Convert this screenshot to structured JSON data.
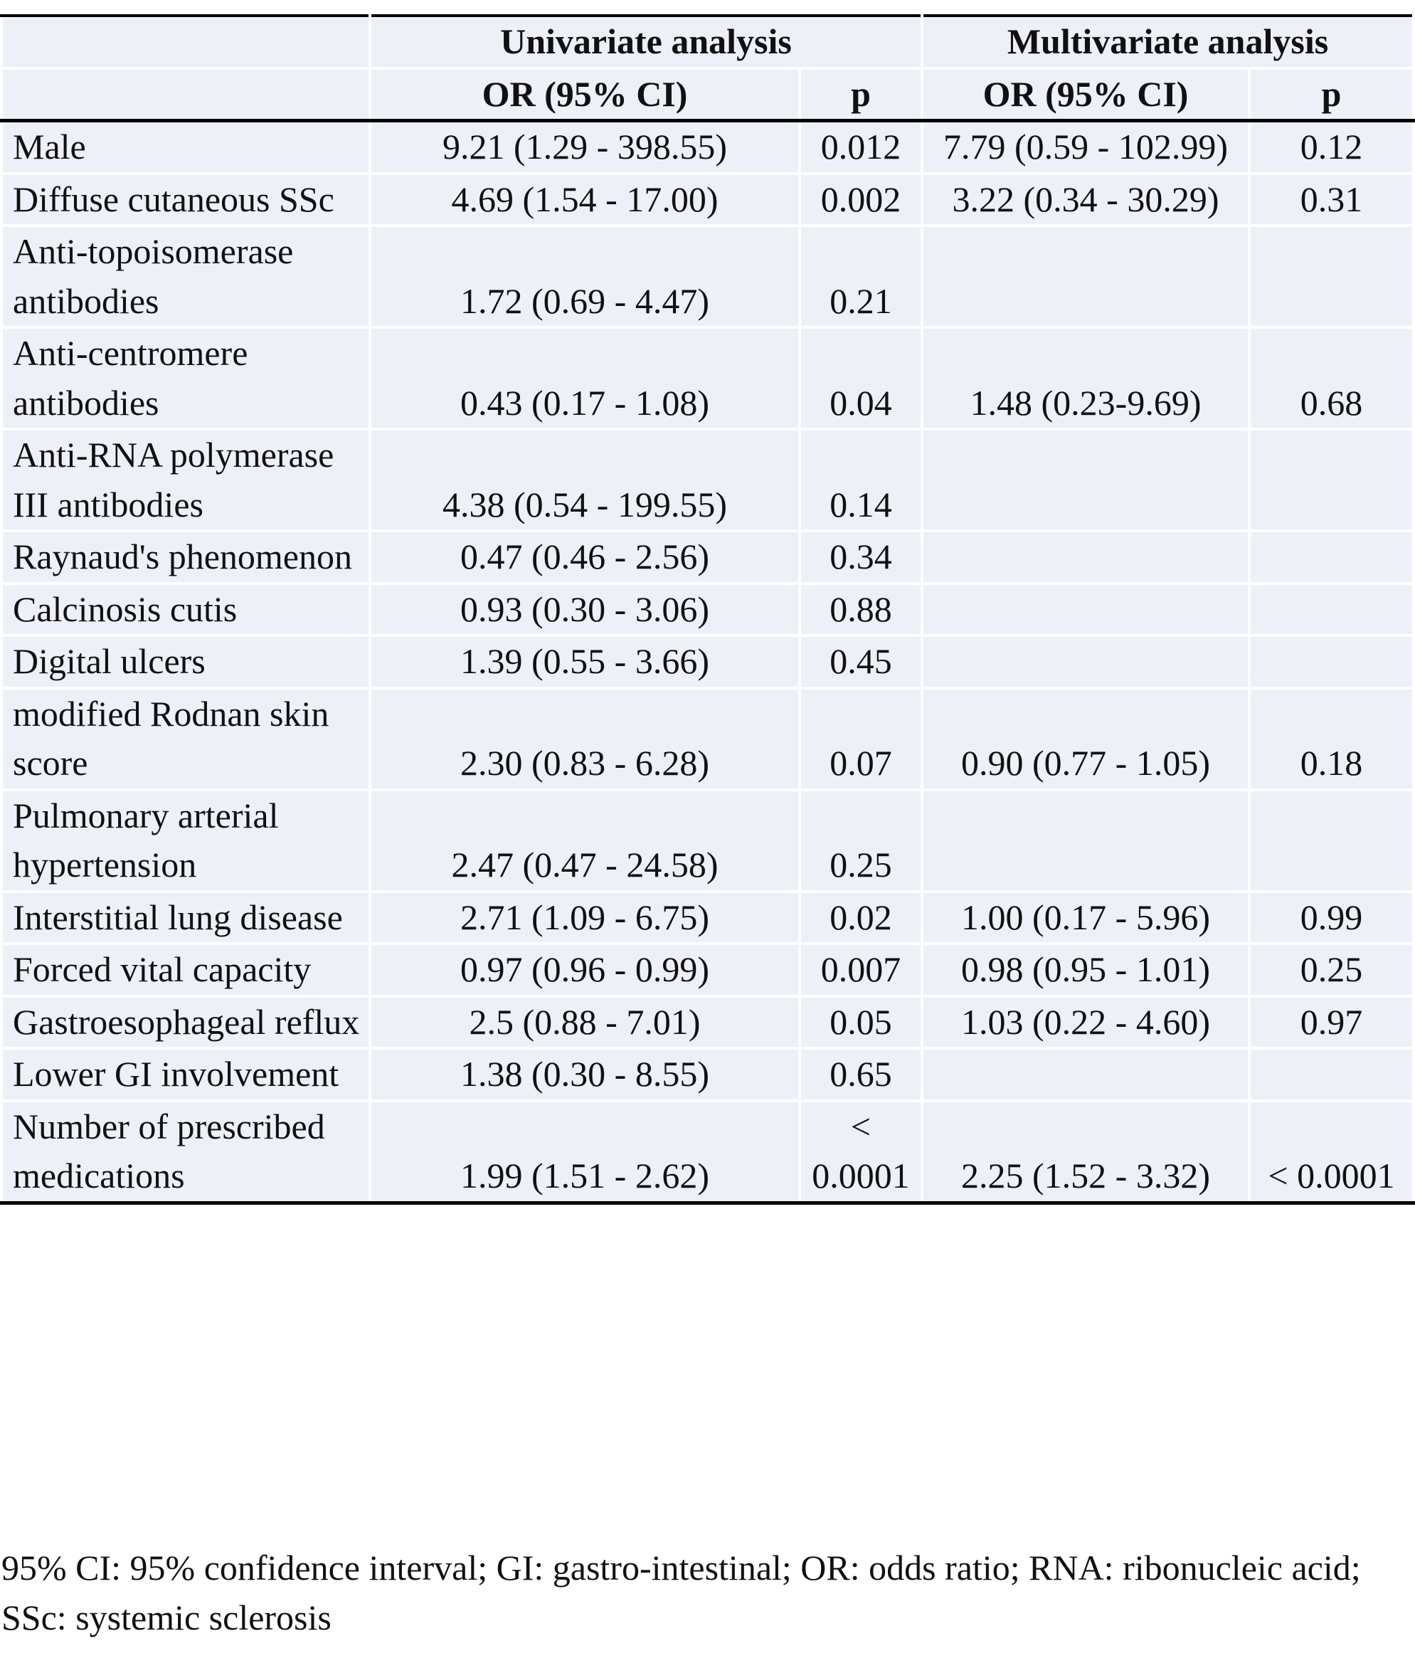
{
  "table": {
    "header": {
      "group_univariate": "Univariate analysis",
      "group_multivariate": "Multivariate analysis",
      "uni_or": "OR (95% CI)",
      "uni_p": "p",
      "multi_or": "OR (95% CI)",
      "multi_p": "p"
    },
    "rows": [
      {
        "label": "Male",
        "uni_or": "9.21 (1.29 - 398.55)",
        "uni_p": "0.012",
        "multi_or": "7.79 (0.59 - 102.99)",
        "multi_p": "0.12"
      },
      {
        "label": "Diffuse cutaneous SSc",
        "uni_or": "4.69 (1.54 - 17.00)",
        "uni_p": "0.002",
        "multi_or": "3.22 (0.34 - 30.29)",
        "multi_p": "0.31"
      },
      {
        "label": "Anti-topoisomerase antibodies",
        "uni_or": "1.72 (0.69 - 4.47)",
        "uni_p": "0.21",
        "multi_or": "",
        "multi_p": ""
      },
      {
        "label": "Anti-centromere antibodies",
        "uni_or": "0.43 (0.17 - 1.08)",
        "uni_p": "0.04",
        "multi_or": "1.48 (0.23-9.69)",
        "multi_p": "0.68"
      },
      {
        "label": "Anti-RNA polymerase III antibodies",
        "uni_or": "4.38 (0.54 - 199.55)",
        "uni_p": "0.14",
        "multi_or": "",
        "multi_p": ""
      },
      {
        "label": "Raynaud's phenomenon",
        "uni_or": "0.47 (0.46 - 2.56)",
        "uni_p": "0.34",
        "multi_or": "",
        "multi_p": ""
      },
      {
        "label": "Calcinosis cutis",
        "uni_or": "0.93 (0.30 - 3.06)",
        "uni_p": "0.88",
        "multi_or": "",
        "multi_p": ""
      },
      {
        "label": "Digital ulcers",
        "uni_or": "1.39 (0.55 - 3.66)",
        "uni_p": "0.45",
        "multi_or": "",
        "multi_p": ""
      },
      {
        "label": "modified Rodnan skin score",
        "uni_or": "2.30 (0.83 - 6.28)",
        "uni_p": "0.07",
        "multi_or": "0.90 (0.77 - 1.05)",
        "multi_p": "0.18"
      },
      {
        "label": "Pulmonary arterial hypertension",
        "uni_or": "2.47 (0.47 - 24.58)",
        "uni_p": "0.25",
        "multi_or": "",
        "multi_p": ""
      },
      {
        "label": "Interstitial lung disease",
        "uni_or": "2.71 (1.09 - 6.75)",
        "uni_p": "0.02",
        "multi_or": "1.00 (0.17 - 5.96)",
        "multi_p": "0.99"
      },
      {
        "label": "Forced vital capacity",
        "uni_or": "0.97 (0.96 - 0.99)",
        "uni_p": "0.007",
        "multi_or": "0.98 (0.95 - 1.01)",
        "multi_p": "0.25"
      },
      {
        "label": "Gastroesophageal reflux",
        "uni_or": "2.5 (0.88 - 7.01)",
        "uni_p": "0.05",
        "multi_or": "1.03 (0.22 - 4.60)",
        "multi_p": "0.97"
      },
      {
        "label": "Lower GI involvement",
        "uni_or": "1.38 (0.30 - 8.55)",
        "uni_p": "0.65",
        "multi_or": "",
        "multi_p": ""
      },
      {
        "label": "Number of prescribed medications",
        "uni_or": "1.99 (1.51 - 2.62)",
        "uni_p": "< 0.0001",
        "multi_or": "2.25 (1.52 - 3.32)",
        "multi_p": "< 0.0001"
      }
    ]
  },
  "footnote": "95% CI: 95% confidence interval; GI: gastro-intestinal; OR: odds ratio; RNA: ribonucleic acid; SSc: systemic sclerosis"
}
